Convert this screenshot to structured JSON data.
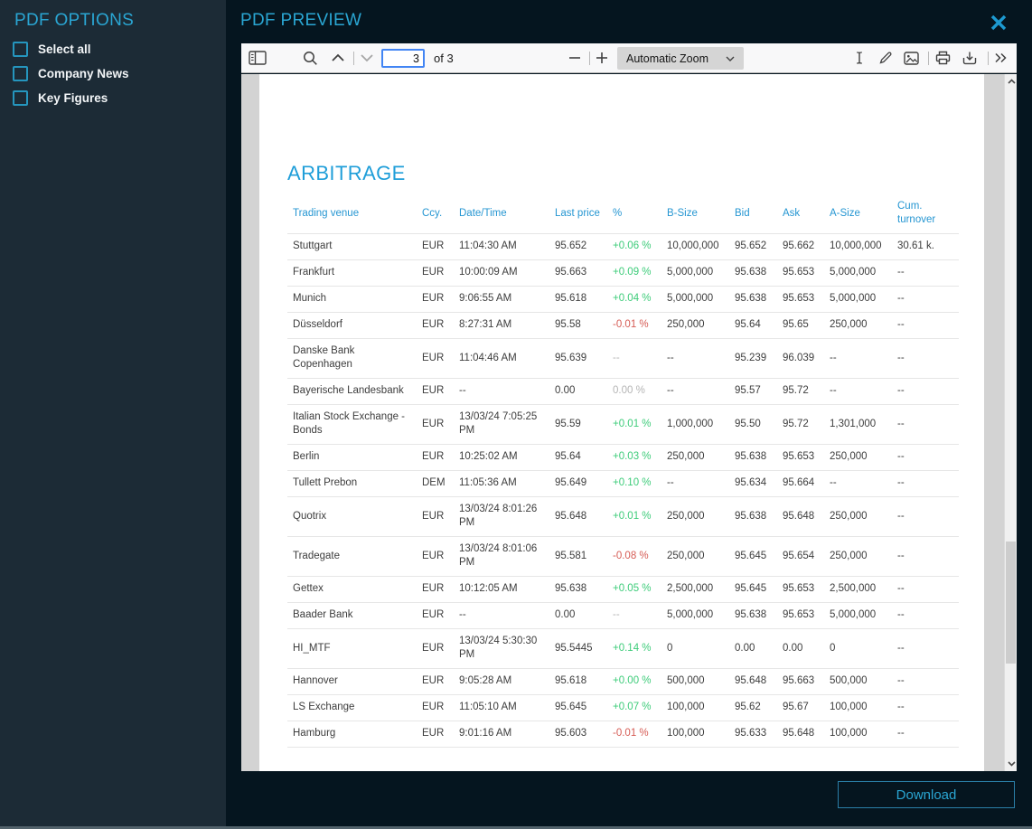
{
  "sidebar": {
    "title": "PDF OPTIONS",
    "options": [
      {
        "label": "Select all",
        "checked": false
      },
      {
        "label": "Company News",
        "checked": false
      },
      {
        "label": "Key Figures",
        "checked": false
      }
    ]
  },
  "header": {
    "title": "PDF PREVIEW",
    "close_icon": "x-icon"
  },
  "toolbar": {
    "page_input_value": "3",
    "page_count_label": "of 3",
    "zoom_selected": "Automatic Zoom",
    "icons": [
      "sidebar-toggle",
      "search",
      "page-up",
      "page-down",
      "zoom-out",
      "zoom-in",
      "text-select",
      "draw",
      "add-image",
      "print",
      "save",
      "more-tools"
    ]
  },
  "document": {
    "title": "ARBITRAGE",
    "table": {
      "headers": [
        "Trading venue",
        "Ccy.",
        "Date/Time",
        "Last price",
        "%",
        "B-Size",
        "Bid",
        "Ask",
        "A-Size",
        "Cum. turnover"
      ],
      "rows": [
        {
          "venue": "Stuttgart",
          "ccy": "EUR",
          "datetime": "11:04:30 AM",
          "last": "95.652",
          "pct": "+0.06 %",
          "pct_class": "up",
          "bsize": "10,000,000",
          "bid": "95.652",
          "ask": "95.662",
          "asize": "10,000,000",
          "cum": "30.61 k."
        },
        {
          "venue": "Frankfurt",
          "ccy": "EUR",
          "datetime": "10:00:09 AM",
          "last": "95.663",
          "pct": "+0.09 %",
          "pct_class": "up",
          "bsize": "5,000,000",
          "bid": "95.638",
          "ask": "95.653",
          "asize": "5,000,000",
          "cum": "--"
        },
        {
          "venue": "Munich",
          "ccy": "EUR",
          "datetime": "9:06:55 AM",
          "last": "95.618",
          "pct": "+0.04 %",
          "pct_class": "up",
          "bsize": "5,000,000",
          "bid": "95.638",
          "ask": "95.653",
          "asize": "5,000,000",
          "cum": "--"
        },
        {
          "venue": "Düsseldorf",
          "ccy": "EUR",
          "datetime": "8:27:31 AM",
          "last": "95.58",
          "pct": "-0.01 %",
          "pct_class": "down",
          "bsize": "250,000",
          "bid": "95.64",
          "ask": "95.65",
          "asize": "250,000",
          "cum": "--"
        },
        {
          "venue": "Danske Bank Copenhagen",
          "ccy": "EUR",
          "datetime": "11:04:46 AM",
          "last": "95.639",
          "pct": "--",
          "pct_class": "muted",
          "bsize": "--",
          "bid": "95.239",
          "ask": "96.039",
          "asize": "--",
          "cum": "--"
        },
        {
          "venue": "Bayerische Landesbank",
          "ccy": "EUR",
          "datetime": "--",
          "last": "0.00",
          "pct": "0.00 %",
          "pct_class": "muted",
          "bsize": "--",
          "bid": "95.57",
          "ask": "95.72",
          "asize": "--",
          "cum": "--"
        },
        {
          "venue": "Italian Stock Exchange - Bonds",
          "ccy": "EUR",
          "datetime": "13/03/24 7:05:25 PM",
          "last": "95.59",
          "pct": "+0.01 %",
          "pct_class": "up",
          "bsize": "1,000,000",
          "bid": "95.50",
          "ask": "95.72",
          "asize": "1,301,000",
          "cum": "--"
        },
        {
          "venue": "Berlin",
          "ccy": "EUR",
          "datetime": "10:25:02 AM",
          "last": "95.64",
          "pct": "+0.03 %",
          "pct_class": "up",
          "bsize": "250,000",
          "bid": "95.638",
          "ask": "95.653",
          "asize": "250,000",
          "cum": "--"
        },
        {
          "venue": "Tullett Prebon",
          "ccy": "DEM",
          "datetime": "11:05:36 AM",
          "last": "95.649",
          "pct": "+0.10 %",
          "pct_class": "up",
          "bsize": "--",
          "bid": "95.634",
          "ask": "95.664",
          "asize": "--",
          "cum": "--"
        },
        {
          "venue": "Quotrix",
          "ccy": "EUR",
          "datetime": "13/03/24 8:01:26 PM",
          "last": "95.648",
          "pct": "+0.01 %",
          "pct_class": "up",
          "bsize": "250,000",
          "bid": "95.638",
          "ask": "95.648",
          "asize": "250,000",
          "cum": "--"
        },
        {
          "venue": "Tradegate",
          "ccy": "EUR",
          "datetime": "13/03/24 8:01:06 PM",
          "last": "95.581",
          "pct": "-0.08 %",
          "pct_class": "down",
          "bsize": "250,000",
          "bid": "95.645",
          "ask": "95.654",
          "asize": "250,000",
          "cum": "--"
        },
        {
          "venue": "Gettex",
          "ccy": "EUR",
          "datetime": "10:12:05 AM",
          "last": "95.638",
          "pct": "+0.05 %",
          "pct_class": "up",
          "bsize": "2,500,000",
          "bid": "95.645",
          "ask": "95.653",
          "asize": "2,500,000",
          "cum": "--"
        },
        {
          "venue": "Baader Bank",
          "ccy": "EUR",
          "datetime": "--",
          "last": "0.00",
          "pct": "--",
          "pct_class": "muted",
          "bsize": "5,000,000",
          "bid": "95.638",
          "ask": "95.653",
          "asize": "5,000,000",
          "cum": "--"
        },
        {
          "venue": "HI_MTF",
          "ccy": "EUR",
          "datetime": "13/03/24 5:30:30 PM",
          "last": "95.5445",
          "pct": "+0.14 %",
          "pct_class": "up",
          "bsize": "0",
          "bid": "0.00",
          "ask": "0.00",
          "asize": "0",
          "cum": "--"
        },
        {
          "venue": "Hannover",
          "ccy": "EUR",
          "datetime": "9:05:28 AM",
          "last": "95.618",
          "pct": "+0.00 %",
          "pct_class": "up",
          "bsize": "500,000",
          "bid": "95.648",
          "ask": "95.663",
          "asize": "500,000",
          "cum": "--"
        },
        {
          "venue": "LS Exchange",
          "ccy": "EUR",
          "datetime": "11:05:10 AM",
          "last": "95.645",
          "pct": "+0.07 %",
          "pct_class": "up",
          "bsize": "100,000",
          "bid": "95.62",
          "ask": "95.67",
          "asize": "100,000",
          "cum": "--"
        },
        {
          "venue": "Hamburg",
          "ccy": "EUR",
          "datetime": "9:01:16 AM",
          "last": "95.603",
          "pct": "-0.01 %",
          "pct_class": "down",
          "bsize": "100,000",
          "bid": "95.633",
          "ask": "95.648",
          "asize": "100,000",
          "cum": "--"
        }
      ]
    }
  },
  "footer": {
    "download_label": "Download"
  },
  "colors": {
    "accent_cyan": "#2aa6d3",
    "doc_blue": "#2596d2",
    "positive_green": "#3ecc7a",
    "negative_red": "#d65c55",
    "muted_gray": "#b5b5b5",
    "sidebar_bg": "#1c2b36",
    "main_bg": "#05151f"
  }
}
